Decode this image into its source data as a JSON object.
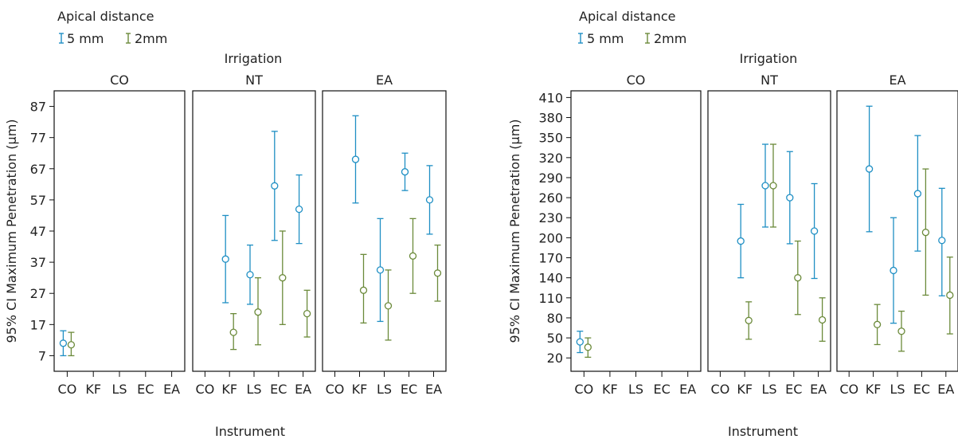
{
  "colors": {
    "series_5mm": "#1f8fc4",
    "series_2mm": "#6b8a3a",
    "frame": "#111111",
    "text": "#222222"
  },
  "chart_data": [
    {
      "type": "scatter",
      "subtype": "interval_plot",
      "title": "",
      "legend_title": "Apical distance",
      "legend_placement": "top-left",
      "facet_title": "Irrigation",
      "facets": [
        "CO",
        "NT",
        "EA"
      ],
      "xlabel": "Instrument",
      "ylabel": "95% CI Maximum Penetration (μm)",
      "categories": [
        "CO",
        "KF",
        "LS",
        "EC",
        "EA"
      ],
      "ylim": [
        2,
        92
      ],
      "yticks": [
        7,
        17,
        27,
        37,
        47,
        57,
        67,
        77,
        87
      ],
      "grid": false,
      "series": [
        {
          "name": "5 mm",
          "points": [
            {
              "facet": "CO",
              "x": "CO",
              "mean": 11,
              "low": 7,
              "high": 15
            },
            {
              "facet": "NT",
              "x": "KF",
              "mean": 38,
              "low": 24,
              "high": 52
            },
            {
              "facet": "NT",
              "x": "LS",
              "mean": 33,
              "low": 23.5,
              "high": 42.5
            },
            {
              "facet": "NT",
              "x": "EC",
              "mean": 61.5,
              "low": 44,
              "high": 79
            },
            {
              "facet": "NT",
              "x": "EA",
              "mean": 54,
              "low": 43,
              "high": 65
            },
            {
              "facet": "EA",
              "x": "KF",
              "mean": 70,
              "low": 56,
              "high": 84
            },
            {
              "facet": "EA",
              "x": "LS",
              "mean": 34.5,
              "low": 18,
              "high": 51
            },
            {
              "facet": "EA",
              "x": "EC",
              "mean": 66,
              "low": 60,
              "high": 72
            },
            {
              "facet": "EA",
              "x": "EA",
              "mean": 57,
              "low": 46,
              "high": 68
            }
          ]
        },
        {
          "name": "2mm",
          "points": [
            {
              "facet": "CO",
              "x": "CO",
              "mean": 10.5,
              "low": 7,
              "high": 14.5
            },
            {
              "facet": "NT",
              "x": "KF",
              "mean": 14.5,
              "low": 9,
              "high": 20.5
            },
            {
              "facet": "NT",
              "x": "LS",
              "mean": 21,
              "low": 10.5,
              "high": 32
            },
            {
              "facet": "NT",
              "x": "EC",
              "mean": 32,
              "low": 17,
              "high": 47
            },
            {
              "facet": "NT",
              "x": "EA",
              "mean": 20.5,
              "low": 13,
              "high": 28
            },
            {
              "facet": "EA",
              "x": "KF",
              "mean": 28,
              "low": 17.5,
              "high": 39.5
            },
            {
              "facet": "EA",
              "x": "LS",
              "mean": 23,
              "low": 12,
              "high": 34.5
            },
            {
              "facet": "EA",
              "x": "EC",
              "mean": 39,
              "low": 27,
              "high": 51
            },
            {
              "facet": "EA",
              "x": "EA",
              "mean": 33.5,
              "low": 24.5,
              "high": 42.5
            }
          ]
        }
      ]
    },
    {
      "type": "scatter",
      "subtype": "interval_plot",
      "title": "",
      "legend_title": "Apical distance",
      "legend_placement": "top-left",
      "facet_title": "Irrigation",
      "facets": [
        "CO",
        "NT",
        "EA"
      ],
      "xlabel": "Instrument",
      "ylabel": "95% CI Maximum Penetration (μm)",
      "categories": [
        "CO",
        "KF",
        "LS",
        "EC",
        "EA"
      ],
      "ylim": [
        0,
        420
      ],
      "yticks": [
        20,
        50,
        80,
        110,
        140,
        170,
        200,
        230,
        260,
        290,
        320,
        350,
        380,
        410
      ],
      "grid": false,
      "series": [
        {
          "name": "5 mm",
          "points": [
            {
              "facet": "CO",
              "x": "CO",
              "mean": 44,
              "low": 28,
              "high": 60
            },
            {
              "facet": "NT",
              "x": "KF",
              "mean": 195,
              "low": 140,
              "high": 250
            },
            {
              "facet": "NT",
              "x": "LS",
              "mean": 278,
              "low": 216,
              "high": 340
            },
            {
              "facet": "NT",
              "x": "EC",
              "mean": 260,
              "low": 191,
              "high": 329
            },
            {
              "facet": "NT",
              "x": "EA",
              "mean": 210,
              "low": 139,
              "high": 281
            },
            {
              "facet": "EA",
              "x": "KF",
              "mean": 303,
              "low": 209,
              "high": 397
            },
            {
              "facet": "EA",
              "x": "LS",
              "mean": 151,
              "low": 72,
              "high": 230
            },
            {
              "facet": "EA",
              "x": "EC",
              "mean": 266,
              "low": 180,
              "high": 353
            },
            {
              "facet": "EA",
              "x": "EA",
              "mean": 196,
              "low": 113,
              "high": 274
            }
          ]
        },
        {
          "name": "2mm",
          "points": [
            {
              "facet": "CO",
              "x": "CO",
              "mean": 36,
              "low": 21,
              "high": 50
            },
            {
              "facet": "NT",
              "x": "KF",
              "mean": 76,
              "low": 48,
              "high": 104
            },
            {
              "facet": "NT",
              "x": "LS",
              "mean": 278,
              "low": 216,
              "high": 340
            },
            {
              "facet": "NT",
              "x": "EC",
              "mean": 140,
              "low": 85,
              "high": 195
            },
            {
              "facet": "NT",
              "x": "EA",
              "mean": 77,
              "low": 45,
              "high": 110
            },
            {
              "facet": "EA",
              "x": "KF",
              "mean": 70,
              "low": 40,
              "high": 100
            },
            {
              "facet": "EA",
              "x": "LS",
              "mean": 60,
              "low": 30,
              "high": 90
            },
            {
              "facet": "EA",
              "x": "EC",
              "mean": 208,
              "low": 114,
              "high": 303
            },
            {
              "facet": "EA",
              "x": "EA",
              "mean": 114,
              "low": 56,
              "high": 171
            }
          ]
        }
      ]
    }
  ]
}
